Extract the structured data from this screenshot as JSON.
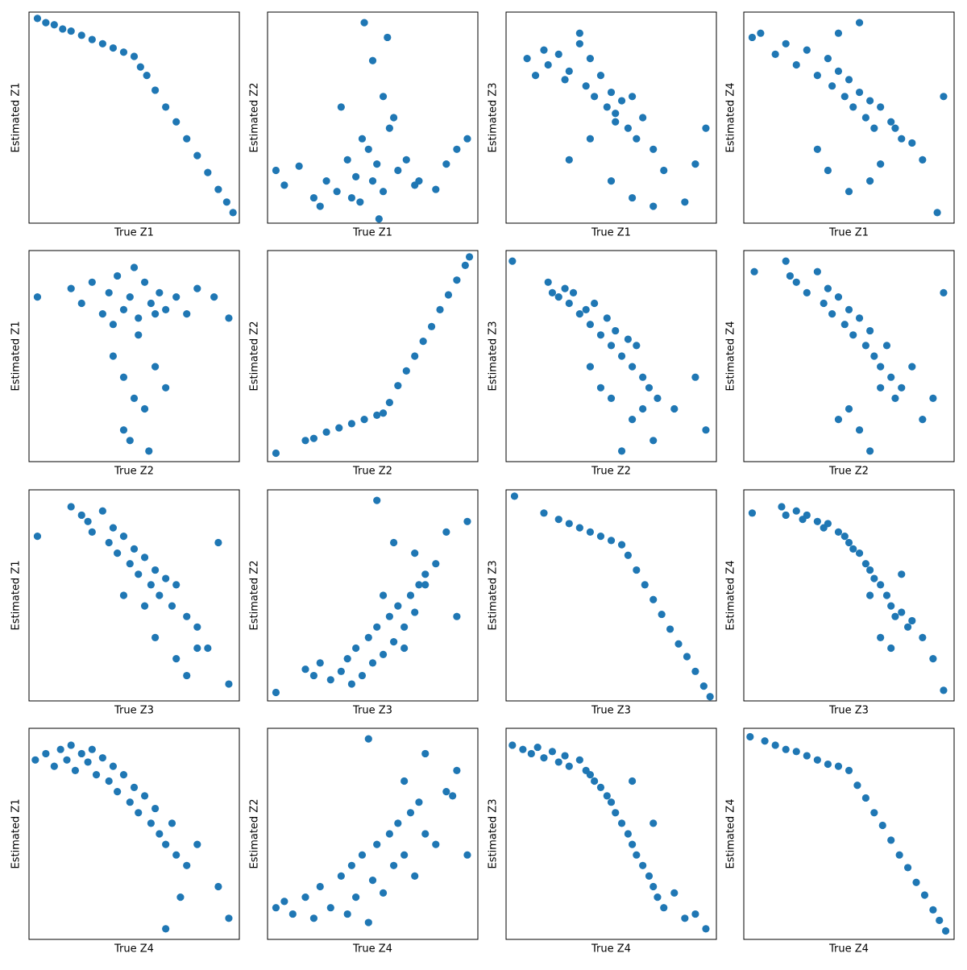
{
  "chart_data": [
    {
      "type": "scatter",
      "x_label": "True Z1",
      "y_label": "Estimated Z1",
      "color": "#1f77b4",
      "xlim": [
        0,
        100
      ],
      "ylim": [
        0,
        100
      ],
      "x": [
        4,
        8,
        12,
        16,
        20,
        25,
        30,
        35,
        40,
        45,
        50,
        53,
        56,
        60,
        65,
        70,
        75,
        80,
        85,
        90,
        94,
        97
      ],
      "y": [
        97,
        95,
        94,
        92,
        91,
        89,
        87,
        85,
        83,
        81,
        79,
        74,
        70,
        63,
        55,
        48,
        40,
        32,
        24,
        16,
        10,
        5
      ]
    },
    {
      "type": "scatter",
      "x_label": "True Z1",
      "y_label": "Estimated Z2",
      "color": "#1f77b4",
      "xlim": [
        0,
        100
      ],
      "ylim": [
        0,
        100
      ],
      "x": [
        4,
        8,
        15,
        22,
        28,
        33,
        38,
        42,
        45,
        48,
        50,
        52,
        55,
        58,
        62,
        66,
        72,
        80,
        90,
        95,
        46,
        57,
        50,
        35,
        60,
        44,
        53,
        25,
        70,
        85,
        40,
        55
      ],
      "y": [
        25,
        18,
        27,
        12,
        20,
        15,
        30,
        22,
        40,
        35,
        20,
        28,
        15,
        45,
        25,
        30,
        20,
        16,
        35,
        40,
        95,
        88,
        77,
        55,
        50,
        10,
        2,
        8,
        18,
        28,
        12,
        60
      ]
    },
    {
      "type": "scatter",
      "x_label": "True Z1",
      "y_label": "Estimated Z3",
      "color": "#1f77b4",
      "xlim": [
        0,
        100
      ],
      "ylim": [
        0,
        100
      ],
      "x": [
        10,
        14,
        18,
        20,
        25,
        28,
        30,
        35,
        38,
        40,
        42,
        45,
        48,
        50,
        52,
        55,
        58,
        60,
        62,
        65,
        70,
        75,
        30,
        40,
        50,
        60,
        70,
        85,
        90,
        95,
        52,
        35
      ],
      "y": [
        78,
        70,
        82,
        75,
        80,
        68,
        72,
        85,
        65,
        78,
        60,
        70,
        55,
        62,
        48,
        58,
        45,
        60,
        40,
        50,
        35,
        25,
        30,
        40,
        20,
        12,
        8,
        10,
        28,
        45,
        52,
        90
      ]
    },
    {
      "type": "scatter",
      "x_label": "True Z1",
      "y_label": "Estimated Z4",
      "color": "#1f77b4",
      "xlim": [
        0,
        100
      ],
      "ylim": [
        0,
        100
      ],
      "x": [
        4,
        8,
        15,
        20,
        25,
        30,
        35,
        40,
        42,
        45,
        48,
        50,
        52,
        55,
        58,
        60,
        62,
        65,
        70,
        75,
        80,
        85,
        95,
        92,
        60,
        50,
        40,
        35,
        65,
        72,
        45,
        55
      ],
      "y": [
        88,
        90,
        80,
        85,
        75,
        82,
        70,
        78,
        65,
        72,
        60,
        68,
        55,
        62,
        50,
        58,
        45,
        55,
        48,
        40,
        38,
        30,
        60,
        5,
        20,
        15,
        25,
        35,
        28,
        45,
        90,
        95
      ]
    },
    {
      "type": "scatter",
      "x_label": "True Z2",
      "y_label": "Estimated Z1",
      "color": "#1f77b4",
      "xlim": [
        0,
        100
      ],
      "ylim": [
        0,
        100
      ],
      "x": [
        4,
        20,
        25,
        30,
        35,
        38,
        40,
        42,
        45,
        48,
        50,
        52,
        55,
        58,
        60,
        62,
        65,
        70,
        75,
        80,
        88,
        95,
        45,
        50,
        55,
        40,
        60,
        48,
        57,
        65,
        52,
        45
      ],
      "y": [
        78,
        82,
        75,
        85,
        70,
        80,
        65,
        88,
        72,
        78,
        92,
        68,
        85,
        75,
        70,
        80,
        72,
        78,
        70,
        82,
        78,
        68,
        40,
        30,
        25,
        50,
        45,
        10,
        5,
        35,
        60,
        15
      ]
    },
    {
      "type": "scatter",
      "x_label": "True Z2",
      "y_label": "Estimated Z2",
      "color": "#1f77b4",
      "xlim": [
        0,
        100
      ],
      "ylim": [
        0,
        100
      ],
      "x": [
        4,
        18,
        22,
        28,
        34,
        40,
        46,
        52,
        55,
        58,
        62,
        66,
        70,
        74,
        78,
        82,
        86,
        90,
        94,
        96
      ],
      "y": [
        4,
        10,
        11,
        14,
        16,
        18,
        20,
        22,
        23,
        28,
        36,
        43,
        50,
        57,
        64,
        72,
        79,
        86,
        93,
        97
      ]
    },
    {
      "type": "scatter",
      "x_label": "True Z2",
      "y_label": "Estimated Z3",
      "color": "#1f77b4",
      "xlim": [
        0,
        100
      ],
      "ylim": [
        0,
        100
      ],
      "x": [
        3,
        20,
        22,
        25,
        28,
        30,
        32,
        35,
        38,
        40,
        42,
        45,
        48,
        50,
        52,
        55,
        58,
        60,
        62,
        65,
        68,
        72,
        80,
        90,
        95,
        40,
        50,
        60,
        70,
        55,
        45,
        65
      ],
      "y": [
        95,
        85,
        80,
        78,
        82,
        75,
        80,
        70,
        72,
        65,
        75,
        60,
        68,
        55,
        62,
        50,
        58,
        45,
        55,
        40,
        35,
        30,
        25,
        40,
        15,
        45,
        30,
        20,
        10,
        5,
        35,
        25
      ]
    },
    {
      "type": "scatter",
      "x_label": "True Z2",
      "y_label": "Estimated Z4",
      "color": "#1f77b4",
      "xlim": [
        0,
        100
      ],
      "ylim": [
        0,
        100
      ],
      "x": [
        5,
        20,
        22,
        25,
        30,
        35,
        38,
        40,
        42,
        45,
        48,
        50,
        52,
        55,
        58,
        60,
        62,
        65,
        68,
        70,
        75,
        80,
        90,
        95,
        50,
        55,
        60,
        45,
        65,
        72,
        85
      ],
      "y": [
        90,
        95,
        88,
        85,
        80,
        90,
        75,
        82,
        70,
        78,
        65,
        72,
        60,
        68,
        55,
        62,
        50,
        45,
        55,
        40,
        35,
        45,
        30,
        80,
        25,
        15,
        5,
        20,
        35,
        30,
        20
      ]
    },
    {
      "type": "scatter",
      "x_label": "True Z3",
      "y_label": "Estimated Z1",
      "color": "#1f77b4",
      "xlim": [
        0,
        100
      ],
      "ylim": [
        0,
        100
      ],
      "x": [
        4,
        20,
        25,
        28,
        30,
        35,
        38,
        40,
        42,
        45,
        48,
        50,
        52,
        55,
        58,
        60,
        62,
        65,
        68,
        70,
        75,
        80,
        90,
        95,
        60,
        70,
        80,
        45,
        55,
        75,
        85
      ],
      "y": [
        78,
        92,
        88,
        85,
        80,
        90,
        75,
        82,
        70,
        78,
        65,
        72,
        60,
        68,
        55,
        62,
        50,
        58,
        45,
        55,
        40,
        35,
        75,
        8,
        30,
        20,
        25,
        50,
        45,
        12,
        25
      ]
    },
    {
      "type": "scatter",
      "x_label": "True Z3",
      "y_label": "Estimated Z2",
      "color": "#1f77b4",
      "xlim": [
        0,
        100
      ],
      "ylim": [
        0,
        100
      ],
      "x": [
        4,
        18,
        22,
        25,
        30,
        35,
        38,
        40,
        42,
        45,
        48,
        50,
        52,
        55,
        58,
        60,
        62,
        65,
        68,
        70,
        72,
        75,
        80,
        90,
        95,
        52,
        60,
        70,
        75,
        85,
        55,
        65
      ],
      "y": [
        4,
        15,
        12,
        18,
        10,
        14,
        20,
        8,
        25,
        12,
        30,
        18,
        35,
        22,
        40,
        28,
        45,
        35,
        50,
        42,
        55,
        60,
        65,
        40,
        85,
        95,
        75,
        70,
        55,
        80,
        50,
        25
      ]
    },
    {
      "type": "scatter",
      "x_label": "True Z3",
      "y_label": "Estimated Z3",
      "color": "#1f77b4",
      "xlim": [
        0,
        100
      ],
      "ylim": [
        0,
        100
      ],
      "x": [
        4,
        18,
        25,
        30,
        35,
        40,
        45,
        50,
        55,
        58,
        62,
        66,
        70,
        74,
        78,
        82,
        86,
        90,
        94,
        97
      ],
      "y": [
        97,
        89,
        86,
        84,
        82,
        80,
        78,
        76,
        74,
        69,
        62,
        55,
        48,
        41,
        34,
        27,
        21,
        14,
        7,
        2
      ]
    },
    {
      "type": "scatter",
      "x_label": "True Z3",
      "y_label": "Estimated Z4",
      "color": "#1f77b4",
      "xlim": [
        0,
        100
      ],
      "ylim": [
        0,
        100
      ],
      "x": [
        4,
        18,
        20,
        25,
        28,
        30,
        35,
        38,
        40,
        45,
        48,
        50,
        52,
        55,
        58,
        60,
        62,
        65,
        68,
        70,
        72,
        75,
        78,
        80,
        85,
        90,
        95,
        65,
        70,
        60,
        75
      ],
      "y": [
        89,
        92,
        88,
        90,
        86,
        88,
        85,
        82,
        84,
        80,
        78,
        75,
        72,
        70,
        65,
        62,
        58,
        55,
        50,
        45,
        40,
        42,
        35,
        38,
        30,
        20,
        5,
        30,
        25,
        50,
        60
      ]
    },
    {
      "type": "scatter",
      "x_label": "True Z4",
      "y_label": "Estimated Z1",
      "color": "#1f77b4",
      "xlim": [
        0,
        100
      ],
      "ylim": [
        0,
        100
      ],
      "x": [
        3,
        8,
        12,
        15,
        18,
        20,
        22,
        25,
        28,
        30,
        32,
        35,
        38,
        40,
        42,
        45,
        48,
        50,
        52,
        55,
        58,
        60,
        62,
        65,
        68,
        70,
        75,
        80,
        90,
        95,
        65,
        72
      ],
      "y": [
        85,
        88,
        82,
        90,
        85,
        92,
        80,
        88,
        84,
        90,
        78,
        86,
        75,
        82,
        70,
        78,
        65,
        72,
        60,
        68,
        55,
        62,
        50,
        45,
        55,
        40,
        35,
        45,
        25,
        10,
        5,
        20
      ]
    },
    {
      "type": "scatter",
      "x_label": "True Z4",
      "y_label": "Estimated Z2",
      "color": "#1f77b4",
      "xlim": [
        0,
        100
      ],
      "ylim": [
        0,
        100
      ],
      "x": [
        4,
        8,
        12,
        18,
        22,
        25,
        30,
        35,
        38,
        40,
        42,
        45,
        48,
        50,
        52,
        55,
        58,
        60,
        62,
        65,
        68,
        70,
        72,
        75,
        80,
        85,
        90,
        95,
        48,
        65,
        75,
        88
      ],
      "y": [
        15,
        18,
        12,
        20,
        10,
        25,
        15,
        30,
        12,
        35,
        20,
        40,
        8,
        28,
        45,
        22,
        50,
        35,
        55,
        40,
        60,
        30,
        65,
        50,
        45,
        70,
        80,
        40,
        95,
        75,
        88,
        68
      ]
    },
    {
      "type": "scatter",
      "x_label": "True Z4",
      "y_label": "Estimated Z3",
      "color": "#1f77b4",
      "xlim": [
        0,
        100
      ],
      "ylim": [
        0,
        100
      ],
      "x": [
        3,
        8,
        12,
        15,
        18,
        22,
        25,
        28,
        30,
        35,
        38,
        40,
        42,
        45,
        48,
        50,
        52,
        55,
        58,
        60,
        62,
        65,
        68,
        70,
        72,
        75,
        80,
        85,
        90,
        95,
        60,
        70
      ],
      "y": [
        92,
        90,
        88,
        91,
        86,
        89,
        84,
        87,
        82,
        85,
        80,
        78,
        75,
        72,
        68,
        65,
        60,
        55,
        50,
        45,
        40,
        35,
        30,
        25,
        20,
        15,
        22,
        10,
        12,
        5,
        75,
        55
      ]
    },
    {
      "type": "scatter",
      "x_label": "True Z4",
      "y_label": "Estimated Z4",
      "color": "#1f77b4",
      "xlim": [
        0,
        100
      ],
      "ylim": [
        0,
        100
      ],
      "x": [
        3,
        10,
        15,
        20,
        25,
        30,
        35,
        40,
        45,
        50,
        54,
        58,
        62,
        66,
        70,
        74,
        78,
        82,
        86,
        90,
        93,
        96
      ],
      "y": [
        96,
        94,
        92,
        90,
        89,
        87,
        85,
        83,
        82,
        80,
        73,
        67,
        60,
        54,
        47,
        40,
        34,
        27,
        21,
        14,
        9,
        4
      ]
    }
  ]
}
